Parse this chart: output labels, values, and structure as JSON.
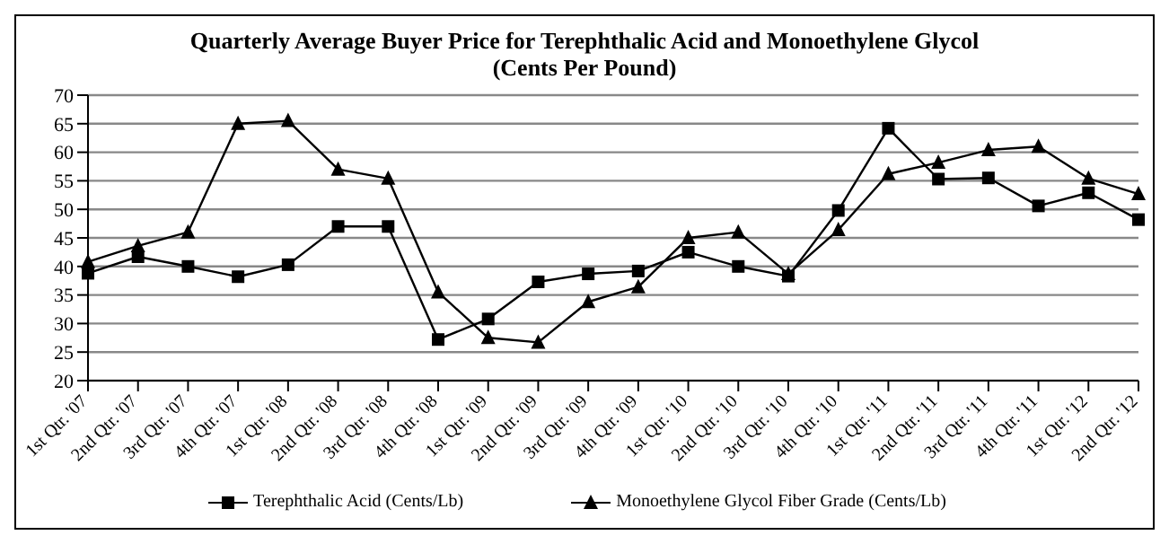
{
  "chart_data": {
    "type": "line",
    "title": "Quarterly Average Buyer Price for Terephthalic Acid and Monoethylene Glycol",
    "subtitle": "(Cents Per Pound)",
    "categories": [
      "1st Qtr. '07",
      "2nd Qtr. '07",
      "3rd Qtr. '07",
      "4th Qtr. '07",
      "1st Qtr. '08",
      "2nd Qtr. '08",
      "3rd Qtr. '08",
      "4th Qtr. '08",
      "1st Qtr. '09",
      "2nd Qtr. '09",
      "3rd Qtr. '09",
      "4th Qtr. '09",
      "1st Qtr. '10",
      "2nd Qtr. '10",
      "3rd Qtr. '10",
      "4th Qtr. '10",
      "1st Qtr. '11",
      "2nd Qtr. '11",
      "3rd Qtr. '11",
      "4th Qtr. '11",
      "1st Qtr. '12",
      "2nd Qtr. '12"
    ],
    "series": [
      {
        "name": "Terephthalic Acid (Cents/Lb)",
        "color": "#000000",
        "marker": "square",
        "values": [
          38.8,
          41.7,
          40,
          38.2,
          40.3,
          47,
          47,
          27.2,
          30.8,
          37.3,
          38.7,
          39.2,
          42.5,
          40,
          38.3,
          49.8,
          64.2,
          55.3,
          55.5,
          50.6,
          52.9,
          48.2
        ]
      },
      {
        "name": "Monoethylene Glycol Fiber Grade (Cents/Lb)",
        "color": "#000000",
        "marker": "triangle",
        "values": [
          40.8,
          43.6,
          46,
          65,
          65.5,
          57,
          55.4,
          35.5,
          27.5,
          26.7,
          33.8,
          36.4,
          45,
          46,
          38.7,
          46.4,
          56.2,
          58.2,
          60.4,
          61,
          55.4,
          52.7
        ]
      }
    ],
    "ylim": [
      20,
      70
    ],
    "yticks": [
      20,
      25,
      30,
      35,
      40,
      45,
      50,
      55,
      60,
      65,
      70
    ],
    "grid": "y",
    "legend": "bottom",
    "line_style": "solid"
  }
}
